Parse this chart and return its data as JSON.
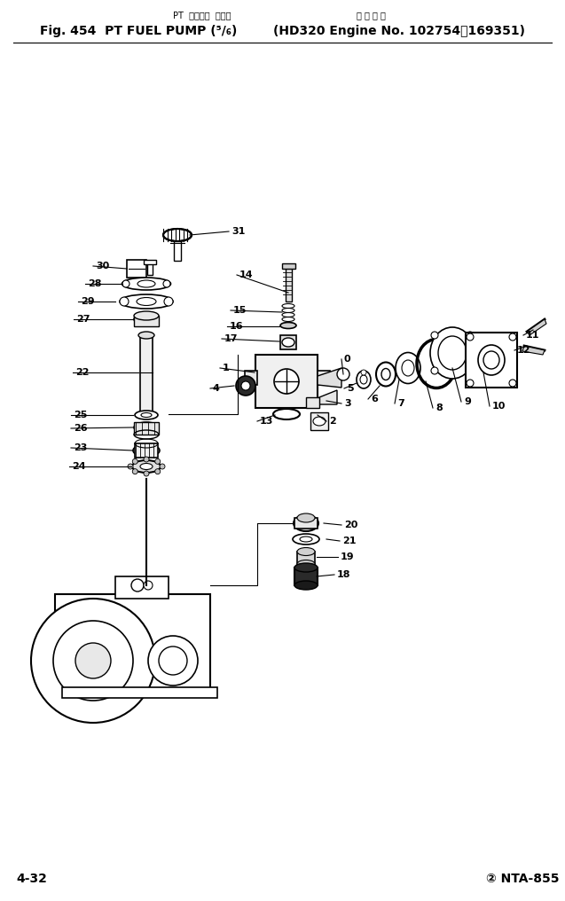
{
  "bg_color": "#ffffff",
  "fig_width": 6.37,
  "fig_height": 10.16,
  "dpi": 100,
  "header_top": "PT  フェエル  ポンプ",
  "header_main": "Fig. 454  PT FUEL PUMP (⁵⁄₆)",
  "header_right_top": "適 用 号 機",
  "header_right": "HD320 Engine No. 102754～169351",
  "page_left": "4-32",
  "page_right": "② NTA-855"
}
